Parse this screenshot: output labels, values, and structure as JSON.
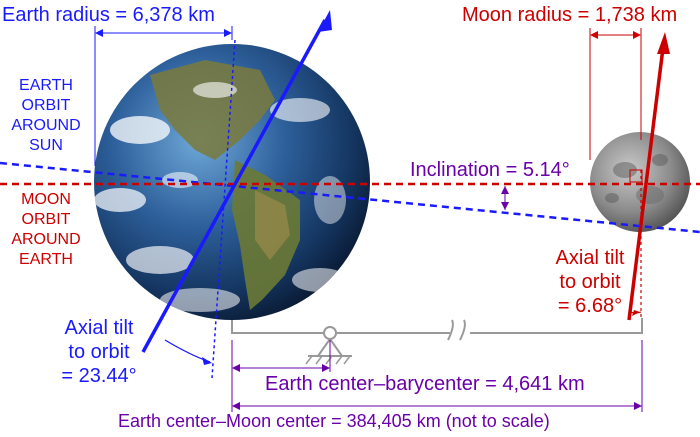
{
  "labels": {
    "earth_radius": "Earth radius = 6,378 km",
    "moon_radius": "Moon radius = 1,738 km",
    "earth_orbit": [
      "EARTH",
      "ORBIT",
      "AROUND",
      "SUN"
    ],
    "moon_orbit": [
      "MOON",
      "ORBIT",
      "AROUND",
      "EARTH"
    ],
    "inclination": "Inclination = 5.14°",
    "moon_axial_tilt": [
      "Axial tilt",
      "to orbit",
      "= 6.68°"
    ],
    "earth_axial_tilt": [
      "Axial tilt",
      "to orbit",
      "= 23.44°"
    ],
    "earth_barycenter": "Earth center–barycenter = 4,641 km",
    "earth_moon_distance": "Earth center–Moon center = 384,405 km (not to scale)"
  },
  "colors": {
    "earth": "#1a1aff",
    "moon": "#cc0000",
    "measure": "#6a00a8",
    "structure": "#999999"
  }
}
